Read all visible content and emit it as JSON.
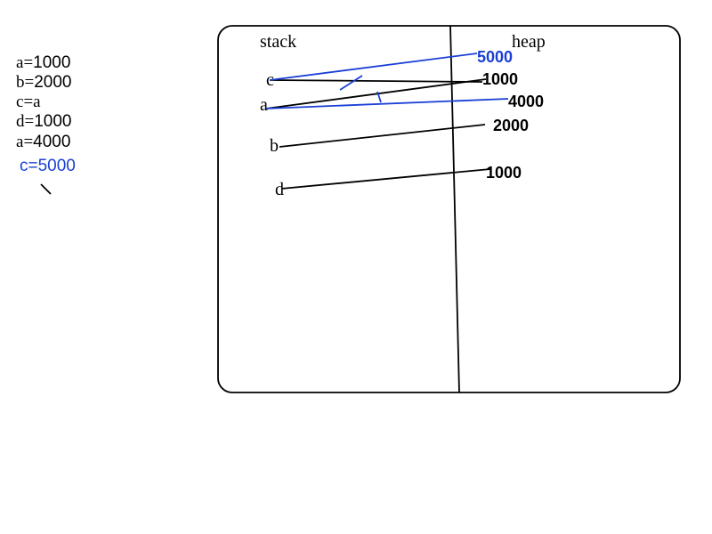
{
  "code": {
    "lines": [
      {
        "var": "a",
        "op": "=",
        "value": "1000"
      },
      {
        "var": "b",
        "op": "=",
        "value": "2000"
      },
      {
        "var": "c",
        "op": "=",
        "value": "a"
      },
      {
        "var": "d",
        "op": "=",
        "value": "1000"
      },
      {
        "var": "a",
        "op": "=",
        "value": "4000"
      }
    ],
    "last_line": "c=5000"
  },
  "diagram": {
    "stack_label": "stack",
    "heap_label": "heap",
    "stack_vars": {
      "c": "c",
      "a": "a",
      "b": "b",
      "d": "d"
    },
    "heap_values": {
      "v5000": "5000",
      "v1000_top": "1000",
      "v4000": "4000",
      "v2000": "2000",
      "v1000_bottom": "1000"
    }
  },
  "colors": {
    "ink": "#000000",
    "accent": "#1a3fd6",
    "background": "#ffffff"
  }
}
